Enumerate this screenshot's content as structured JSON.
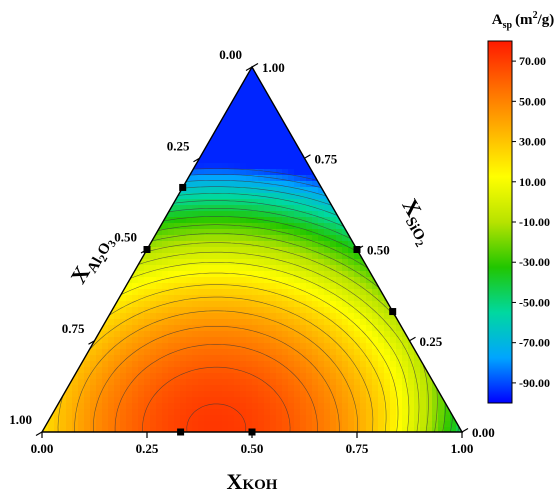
{
  "chart_data": {
    "type": "ternary-contour",
    "axes": {
      "bottom": {
        "label": "X",
        "sub": "KOH",
        "ticks": [
          "0.00",
          "0.25",
          "0.50",
          "0.75",
          "1.00"
        ]
      },
      "left": {
        "label": "X",
        "sub1": "Al",
        "sub2": "2",
        "sub3": "O",
        "sub4": "3",
        "ticks": [
          "1.00",
          "0.75",
          "0.50",
          "0.25",
          "0.00"
        ]
      },
      "right": {
        "label": "X",
        "sub1": "SiO",
        "sub2": "2",
        "ticks": [
          "0.00",
          "0.25",
          "0.50",
          "0.75",
          "1.00"
        ]
      }
    },
    "colorbar": {
      "title": "A",
      "title_sub": "sp",
      "title_unit_open": "(m",
      "title_unit_sup": "2",
      "title_unit_close": "/g)",
      "range": [
        -100,
        80
      ],
      "ticks": [
        "70.00",
        "50.00",
        "30.00",
        "10.00",
        "-10.00",
        "-30.00",
        "-50.00",
        "-70.00",
        "-90.00"
      ],
      "tick_values": [
        70,
        50,
        30,
        10,
        -10,
        -30,
        -50,
        -70,
        -90
      ],
      "colors": [
        "#0000ff",
        "#00a5ff",
        "#00d8a0",
        "#21c600",
        "#b7e300",
        "#ffff00",
        "#ffb400",
        "#ff6a00",
        "#ff1a00"
      ]
    },
    "surface": {
      "max_value": 72,
      "max_at": {
        "koh": 0.41,
        "al2o3": 0.58,
        "sio2": 0.01
      },
      "min_value": -95,
      "min_at": {
        "koh": 0.0,
        "al2o3": 0.0,
        "sio2": 1.0
      }
    },
    "design_points": [
      {
        "koh": 0.0,
        "al2o3": 0.5,
        "sio2": 0.5
      },
      {
        "koh": 0.5,
        "al2o3": 0.0,
        "sio2": 0.5
      },
      {
        "koh": 0.5,
        "al2o3": 0.5,
        "sio2": 0.0
      },
      {
        "koh": 0.0,
        "al2o3": 0.33,
        "sio2": 0.67
      },
      {
        "koh": 0.67,
        "al2o3": 0.0,
        "sio2": 0.33
      },
      {
        "koh": 0.33,
        "al2o3": 0.67,
        "sio2": 0.0
      }
    ]
  }
}
